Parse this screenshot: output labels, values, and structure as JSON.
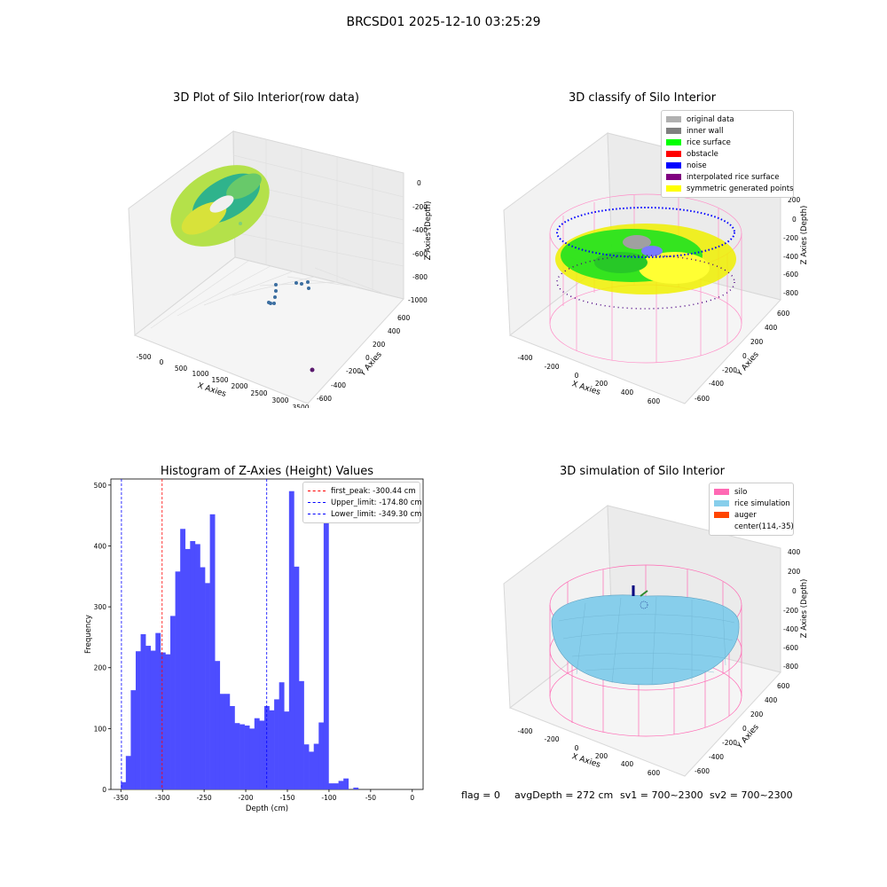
{
  "figure": {
    "suptitle": "BRCSD01 2025-12-10 03:25:29",
    "footer": {
      "flag": "flag = 0",
      "avg": "avgDepth = 272 cm",
      "sv1": "sv1 = 700~2300",
      "sv2": "sv2 = 700~2300"
    }
  },
  "panel1": {
    "title": "3D Plot of Silo Interior(row data)",
    "xlabel": "X Axies",
    "ylabel": "Y Axies",
    "zlabel": "Z Axies (Depth)",
    "xticks": [
      "-500",
      "0",
      "500",
      "1000",
      "1500",
      "2000",
      "2500",
      "3000",
      "3500"
    ],
    "yticks": [
      "600",
      "400",
      "200",
      "0",
      "-200",
      "-400",
      "-600"
    ],
    "zticks": [
      "0",
      "-200",
      "-400",
      "-600",
      "-800",
      "-1000"
    ]
  },
  "panel2": {
    "title": "3D classify of Silo Interior",
    "xlabel": "X Axies",
    "ylabel": "Y Axies",
    "zlabel": "Z Axies (Depth)",
    "xticks": [
      "-400",
      "-200",
      "0",
      "200",
      "400",
      "600"
    ],
    "yticks": [
      "600",
      "400",
      "200",
      "0",
      "-200",
      "-400",
      "-600"
    ],
    "zticks": [
      "200",
      "0",
      "-200",
      "-400",
      "-600",
      "-800"
    ],
    "legend": [
      {
        "label": "original data",
        "color": "#b0b0b0"
      },
      {
        "label": "inner wall",
        "color": "#808080"
      },
      {
        "label": "rice surface",
        "color": "#00ff00"
      },
      {
        "label": "obstacle",
        "color": "#ff0000"
      },
      {
        "label": "noise",
        "color": "#0000ff"
      },
      {
        "label": "interpolated rice surface",
        "color": "#800080"
      },
      {
        "label": "symmetric generated points",
        "color": "#ffff00"
      }
    ]
  },
  "panel3": {
    "title": "3D simulation of Silo Interior",
    "xlabel": "X Axies",
    "ylabel": "Y Axies",
    "zlabel": "Z Axies (Depth)",
    "xticks": [
      "-400",
      "-200",
      "0",
      "200",
      "400",
      "600"
    ],
    "yticks": [
      "600",
      "400",
      "200",
      "0",
      "-200",
      "-400",
      "-600"
    ],
    "zticks": [
      "400",
      "200",
      "0",
      "-200",
      "-400",
      "-600",
      "-800"
    ],
    "legend": [
      {
        "label": "silo",
        "color": "#ff69b4"
      },
      {
        "label": "rice simulation",
        "color": "#87ceeb"
      },
      {
        "label": "auger",
        "color": "#ff4500"
      },
      {
        "label": "center(114,-35)",
        "color": ""
      }
    ]
  },
  "chart_data": {
    "type": "bar",
    "title": "Histogram of Z-Axies (Height) Values",
    "xlabel": "Depth (cm)",
    "ylabel": "Frequency",
    "xlim": [
      -362,
      13
    ],
    "ylim": [
      0,
      510
    ],
    "xticks": [
      -350,
      -300,
      -250,
      -200,
      -150,
      -100,
      -50,
      0
    ],
    "yticks": [
      0,
      100,
      200,
      300,
      400,
      500
    ],
    "bin_start": -350,
    "bin_width": 5.94,
    "color": "#4d4dff",
    "values": [
      12,
      55,
      163,
      227,
      255,
      236,
      228,
      257,
      225,
      222,
      285,
      358,
      428,
      395,
      408,
      403,
      365,
      339,
      452,
      211,
      157,
      157,
      137,
      109,
      107,
      105,
      100,
      117,
      113,
      137,
      130,
      148,
      176,
      128,
      490,
      366,
      178,
      74,
      62,
      75,
      110,
      465,
      10,
      10,
      14,
      18,
      0,
      3
    ],
    "lines": [
      {
        "label": "first_peak: -300.44 cm",
        "x": -300.44,
        "color": "#ff0000"
      },
      {
        "label": "Upper_limit: -174.80 cm",
        "x": -174.8,
        "color": "#0000ff"
      },
      {
        "label": "Lower_limit: -349.30 cm",
        "x": -349.3,
        "color": "#0000ff"
      }
    ]
  }
}
